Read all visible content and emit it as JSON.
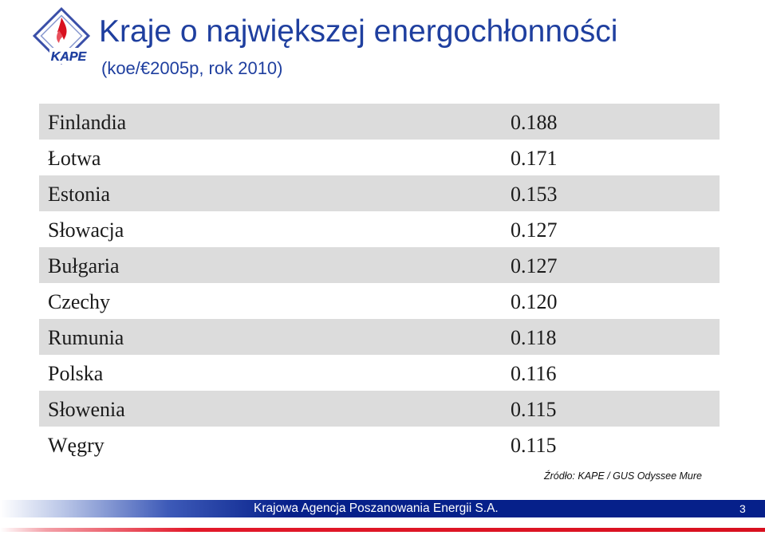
{
  "header": {
    "title": "Kraje o największej energochłonności",
    "subtitle": "(koe/€2005p, rok 2010)",
    "logo_text": "KAPE",
    "logo_icon": "kape-logo-icon"
  },
  "table": {
    "rows": [
      {
        "country": "Finlandia",
        "value": "0.188"
      },
      {
        "country": "Łotwa",
        "value": "0.171"
      },
      {
        "country": "Estonia",
        "value": "0.153"
      },
      {
        "country": "Słowacja",
        "value": "0.127"
      },
      {
        "country": "Bułgaria",
        "value": "0.127"
      },
      {
        "country": "Czechy",
        "value": "0.120"
      },
      {
        "country": "Rumunia",
        "value": "0.118"
      },
      {
        "country": "Polska",
        "value": "0.116"
      },
      {
        "country": "Słowenia",
        "value": "0.115"
      },
      {
        "country": "Węgry",
        "value": "0.115"
      }
    ],
    "shaded_color": "#dcdcdc"
  },
  "source": "Źródło: KAPE / GUS Odyssee Mure",
  "footer": {
    "organization": "Krajowa Agencja Poszanowania Energii S.A.",
    "page_number": "3",
    "bar_color": "#06208a",
    "accent_color": "#d8101f"
  },
  "colors": {
    "title": "#1f3f9f"
  }
}
